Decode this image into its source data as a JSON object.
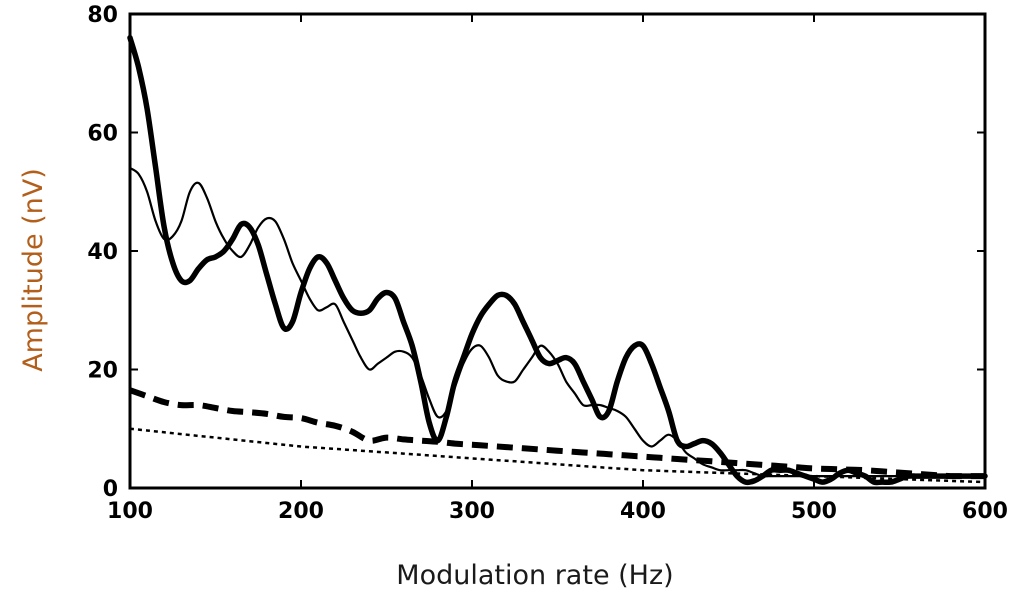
{
  "chart_data": {
    "type": "line",
    "xlabel": "Modulation rate (Hz)",
    "ylabel": "Amplitude (nV)",
    "xlim": [
      100,
      600
    ],
    "ylim": [
      0,
      80
    ],
    "xticks": [
      100,
      200,
      300,
      400,
      500,
      600
    ],
    "yticks": [
      0,
      20,
      40,
      60,
      80
    ],
    "grid": false,
    "legend": false,
    "colors": {
      "axis": "#000000",
      "ylabel": "#b35f1c",
      "xlabel": "#1a1a1a",
      "series": "#000000"
    },
    "series": [
      {
        "style": "thick-solid",
        "x": [
          100,
          105,
          110,
          115,
          120,
          125,
          130,
          135,
          140,
          145,
          150,
          155,
          160,
          165,
          170,
          175,
          180,
          185,
          190,
          195,
          200,
          205,
          210,
          215,
          220,
          225,
          230,
          235,
          240,
          245,
          250,
          255,
          260,
          265,
          270,
          275,
          280,
          285,
          290,
          295,
          300,
          305,
          310,
          315,
          320,
          325,
          330,
          335,
          340,
          345,
          350,
          355,
          360,
          365,
          370,
          375,
          380,
          385,
          390,
          395,
          400,
          405,
          410,
          415,
          420,
          425,
          430,
          435,
          440,
          445,
          450,
          455,
          460,
          465,
          470,
          475,
          480,
          485,
          490,
          495,
          500,
          505,
          510,
          515,
          520,
          525,
          530,
          535,
          540,
          545,
          550,
          555,
          560,
          565,
          570,
          575,
          580,
          585,
          590,
          595,
          600
        ],
        "y": [
          76,
          71,
          64,
          54,
          44,
          38,
          35,
          35,
          37,
          38.5,
          39,
          40,
          42,
          44.5,
          44,
          41,
          36,
          31,
          27,
          28,
          33,
          37,
          39,
          38,
          35,
          32,
          30,
          29.5,
          30,
          32,
          33,
          32,
          28,
          24,
          18,
          11,
          8,
          12,
          18,
          22,
          26,
          29,
          31,
          32.5,
          32.5,
          31,
          28,
          25,
          22,
          21,
          21.5,
          22,
          21,
          18,
          15,
          12,
          13,
          18,
          22,
          24,
          24,
          21,
          17,
          13,
          8,
          7,
          7.5,
          8,
          7.5,
          6,
          4,
          2,
          1,
          1.2,
          2,
          3,
          3,
          3,
          2.5,
          2,
          1.5,
          1,
          1.5,
          2.5,
          3,
          2.5,
          2,
          1,
          1,
          1,
          1.5,
          2,
          2,
          2,
          2,
          2,
          2,
          2,
          2,
          2,
          2
        ]
      },
      {
        "style": "thin-solid",
        "x": [
          100,
          105,
          110,
          115,
          120,
          125,
          130,
          135,
          140,
          145,
          150,
          155,
          160,
          165,
          170,
          175,
          180,
          185,
          190,
          195,
          200,
          205,
          210,
          215,
          220,
          225,
          230,
          235,
          240,
          245,
          250,
          255,
          260,
          265,
          270,
          275,
          280,
          285,
          290,
          295,
          300,
          305,
          310,
          315,
          320,
          325,
          330,
          335,
          340,
          345,
          350,
          355,
          360,
          365,
          370,
          375,
          380,
          385,
          390,
          395,
          400,
          405,
          410,
          415,
          420,
          425,
          430,
          435,
          440,
          445,
          450,
          455,
          460,
          465,
          470,
          475,
          480,
          485,
          490,
          495,
          500,
          505,
          510,
          515,
          520,
          525,
          530,
          535,
          540,
          545,
          550,
          555,
          560,
          565,
          570,
          575,
          580,
          585,
          590,
          595,
          600
        ],
        "y": [
          54,
          53,
          50,
          45,
          42,
          42.5,
          45,
          50,
          51.5,
          49,
          45,
          42,
          40,
          39,
          41,
          44,
          45.5,
          45,
          42,
          38,
          35,
          32,
          30,
          30.5,
          31,
          28,
          25,
          22,
          20,
          21,
          22,
          23,
          23,
          22,
          19,
          15,
          12,
          13,
          17,
          21,
          23.5,
          24,
          22,
          19,
          18,
          18,
          20,
          22,
          24,
          23,
          21,
          18,
          16,
          14,
          14,
          14,
          13.5,
          13,
          12,
          10,
          8,
          7,
          8,
          9,
          8,
          6,
          5,
          4,
          3.5,
          3,
          3,
          3,
          3,
          2.5,
          2,
          2,
          2,
          2,
          2,
          2,
          2,
          2,
          2,
          2,
          2,
          2,
          2,
          2,
          2,
          2,
          2,
          2,
          2,
          2,
          2,
          2,
          2,
          2,
          2,
          2,
          2
        ]
      },
      {
        "style": "thick-dashed",
        "x": [
          100,
          110,
          120,
          130,
          140,
          150,
          160,
          170,
          180,
          190,
          200,
          210,
          220,
          230,
          240,
          250,
          260,
          270,
          280,
          290,
          300,
          310,
          320,
          330,
          340,
          350,
          360,
          370,
          380,
          390,
          400,
          410,
          420,
          430,
          440,
          450,
          460,
          470,
          480,
          490,
          500,
          510,
          520,
          530,
          540,
          550,
          560,
          570,
          580,
          590,
          600
        ],
        "y": [
          16.5,
          15.5,
          14.5,
          14,
          14,
          13.5,
          13,
          12.8,
          12.5,
          12,
          11.8,
          11,
          10.5,
          9.5,
          8,
          8.5,
          8.2,
          8,
          7.8,
          7.5,
          7.3,
          7.1,
          6.9,
          6.7,
          6.5,
          6.3,
          6.1,
          5.9,
          5.7,
          5.5,
          5.3,
          5.1,
          4.9,
          4.7,
          4.5,
          4.3,
          4.1,
          3.9,
          3.7,
          3.5,
          3.3,
          3.2,
          3.1,
          3,
          2.8,
          2.6,
          2.4,
          2.2,
          2,
          2,
          2
        ]
      },
      {
        "style": "dotted",
        "x": [
          100,
          110,
          120,
          130,
          140,
          150,
          160,
          170,
          180,
          190,
          200,
          210,
          220,
          230,
          240,
          250,
          260,
          270,
          280,
          290,
          300,
          310,
          320,
          330,
          340,
          350,
          360,
          370,
          380,
          390,
          400,
          410,
          420,
          430,
          440,
          450,
          460,
          470,
          480,
          490,
          500,
          510,
          520,
          530,
          540,
          550,
          560,
          570,
          580,
          590,
          600
        ],
        "y": [
          10,
          9.7,
          9.4,
          9.1,
          8.8,
          8.5,
          8.2,
          7.9,
          7.6,
          7.3,
          7,
          6.8,
          6.6,
          6.4,
          6.2,
          6,
          5.8,
          5.6,
          5.4,
          5.2,
          5,
          4.8,
          4.6,
          4.4,
          4.2,
          4,
          3.8,
          3.6,
          3.4,
          3.2,
          3,
          2.9,
          2.8,
          2.7,
          2.6,
          2.5,
          2.4,
          2.3,
          2.2,
          2.1,
          2,
          1.9,
          1.8,
          1.7,
          1.6,
          1.5,
          1.4,
          1.3,
          1.2,
          1.1,
          1
        ]
      }
    ]
  }
}
